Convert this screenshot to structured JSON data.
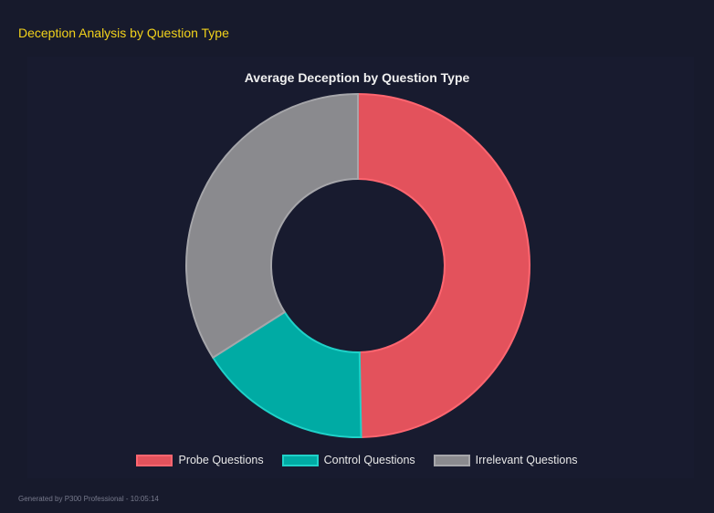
{
  "header": {
    "title": "Deception Analysis by Question Type"
  },
  "chart_data": {
    "type": "doughnut",
    "title": "Average Deception by Question Type",
    "categories": [
      "Probe Questions",
      "Control Questions",
      "Irrelevant Questions"
    ],
    "values": [
      49.7,
      16.3,
      34.0
    ],
    "colors": [
      "#e3525c",
      "#00aba4",
      "#8a8a8e"
    ],
    "border_colors": [
      "#ff6670",
      "#1fd1c8",
      "#a6a6aa"
    ],
    "legend_position": "bottom"
  },
  "footer": {
    "text": "Generated by P300 Professional - 10:05:14"
  }
}
